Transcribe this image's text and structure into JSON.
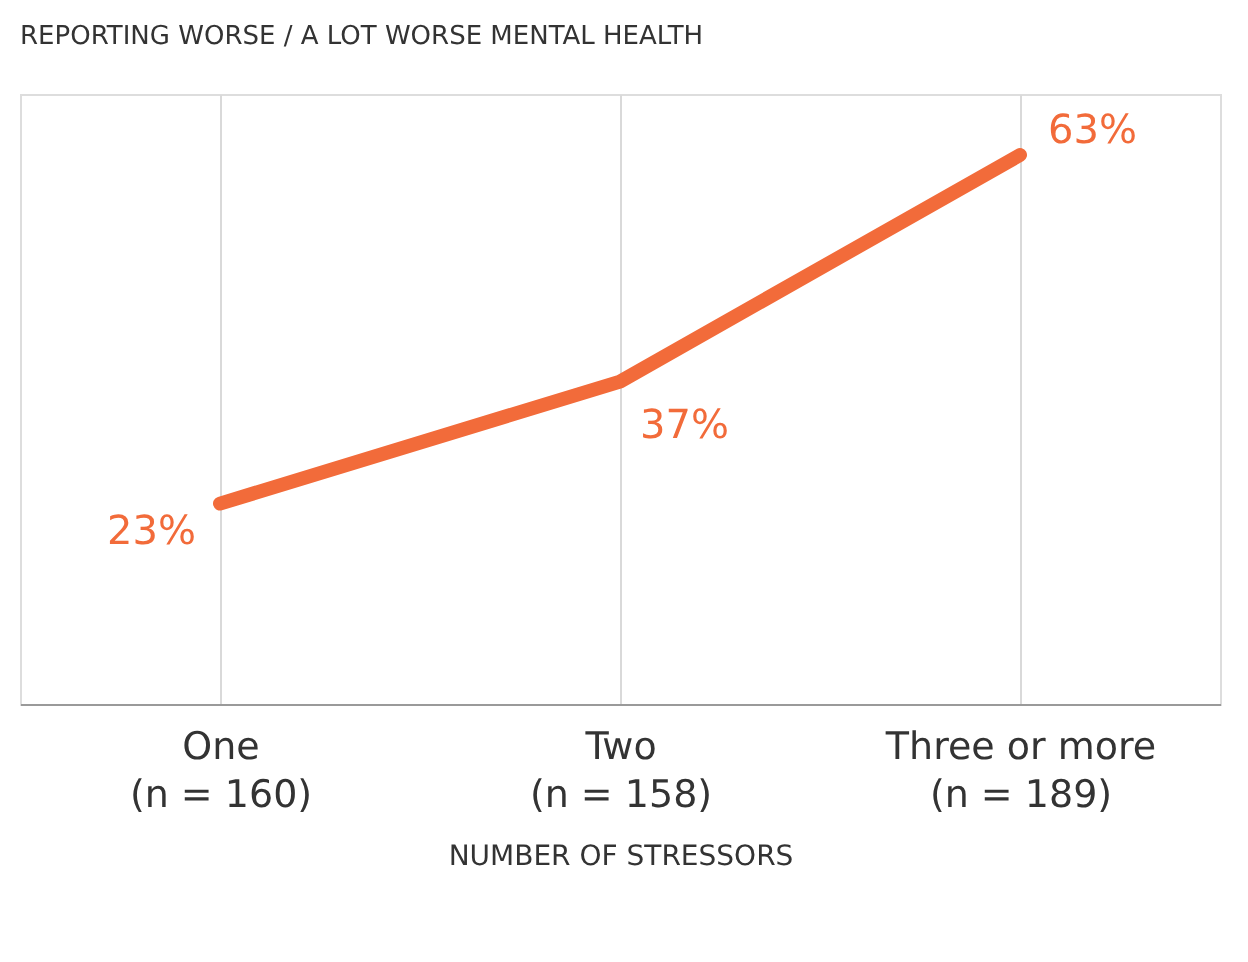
{
  "chart_data": {
    "type": "line",
    "title": "REPORTING WORSE / A LOT WORSE MENTAL HEALTH",
    "xlabel": "NUMBER OF STRESSORS",
    "categories": [
      "One\n(n = 160)",
      "Two\n(n = 158)",
      "Three or more\n(n = 189)"
    ],
    "series": [
      {
        "color": "#f26b3a",
        "values": [
          23,
          37,
          63
        ],
        "value_labels": [
          "23%",
          "37%",
          "63%"
        ]
      }
    ],
    "ylim": [
      0,
      70
    ],
    "tick_labels": "x",
    "grid": "x",
    "marker": "none",
    "line_style": "solid"
  }
}
